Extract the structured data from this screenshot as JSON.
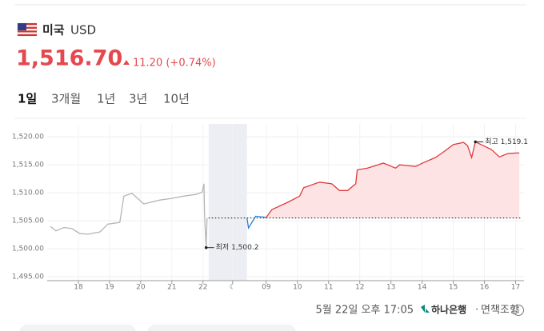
{
  "header": {
    "currency_name": "미국",
    "currency_code": "USD",
    "price": "1,516.70",
    "change": "11.20 (+0.74%)"
  },
  "tabs": [
    "1일",
    "3개월",
    "1년",
    "3년",
    "10년"
  ],
  "chart_data": {
    "type": "line",
    "xlim": [
      0,
      15.3
    ],
    "ylim": [
      1494.3,
      1522.3
    ],
    "xticks": [
      {
        "value": 1,
        "label": "18"
      },
      {
        "value": 2,
        "label": "19"
      },
      {
        "value": 3,
        "label": "20"
      },
      {
        "value": 4,
        "label": "21"
      },
      {
        "value": 5,
        "label": "22"
      },
      {
        "value": 5.95,
        "label": "☾"
      },
      {
        "value": 7.03,
        "label": "09"
      },
      {
        "value": 8.03,
        "label": "10"
      },
      {
        "value": 9.03,
        "label": "11"
      },
      {
        "value": 10.03,
        "label": "12"
      },
      {
        "value": 11.03,
        "label": "13"
      },
      {
        "value": 12.03,
        "label": "14"
      },
      {
        "value": 13.03,
        "label": "15"
      },
      {
        "value": 14.03,
        "label": "16"
      },
      {
        "value": 15.03,
        "label": "17"
      }
    ],
    "yticks": [
      {
        "value": 1495,
        "label": "1,495.00"
      },
      {
        "value": 1500,
        "label": "1,500.00"
      },
      {
        "value": 1505,
        "label": "1,505.00"
      },
      {
        "value": 1510,
        "label": "1,510.00"
      },
      {
        "value": 1515,
        "label": "1,515.00"
      },
      {
        "value": 1520,
        "label": "1,520.00"
      }
    ],
    "grid": true,
    "baseline": 1505.5,
    "night_band": [
      5.18,
      6.41
    ],
    "series": [
      {
        "color": "#b5b5b5",
        "x": [
          0.1,
          0.28,
          0.54,
          0.79,
          1.05,
          1.31,
          1.69,
          1.95,
          2.33,
          2.46,
          2.72,
          3.1,
          3.62,
          4.0,
          4.38,
          4.77,
          4.97,
          5.03,
          5.05,
          5.1,
          5.13
        ],
        "values": [
          1504.0,
          1503.2,
          1503.8,
          1503.6,
          1502.7,
          1502.6,
          1503.0,
          1504.4,
          1504.7,
          1509.4,
          1509.9,
          1508.0,
          1508.7,
          1509.0,
          1509.4,
          1509.7,
          1510.1,
          1511.6,
          1505.9,
          1500.2,
          1505.5
        ]
      },
      {
        "color": "#2b7cd3",
        "x": [
          6.41,
          6.46,
          6.69,
          7.03
        ],
        "values": [
          1505.5,
          1503.7,
          1505.8,
          1505.6
        ]
      },
      {
        "color": "#e03a3e",
        "fill": "#fde3e3",
        "x": [
          7.03,
          7.21,
          7.72,
          8.1,
          8.23,
          8.74,
          9.13,
          9.38,
          9.64,
          9.9,
          9.95,
          10.28,
          10.79,
          11.18,
          11.31,
          11.82,
          12.08,
          12.46,
          12.72,
          13.03,
          13.36,
          13.49,
          13.62,
          13.74,
          14.0,
          14.26,
          14.51,
          14.77,
          15.03,
          15.15
        ],
        "values": [
          1505.6,
          1507.0,
          1508.3,
          1509.4,
          1510.9,
          1511.9,
          1511.6,
          1510.4,
          1510.4,
          1511.6,
          1514.1,
          1514.4,
          1515.3,
          1514.4,
          1515.0,
          1514.7,
          1515.4,
          1516.3,
          1517.3,
          1518.6,
          1519.0,
          1518.4,
          1516.3,
          1519.1,
          1518.4,
          1517.7,
          1516.4,
          1517.0,
          1517.1,
          1517.1
        ]
      }
    ],
    "annotations": [
      {
        "text": "최고 1,519.1",
        "x": 13.74,
        "y": 1519.1
      },
      {
        "text": "최저 1,500.2",
        "x": 5.1,
        "y": 1500.2
      }
    ]
  },
  "footer": {
    "timestamp": "5월 22일 오후 17:05",
    "source": "하나은행",
    "disclaimer": "면책조항"
  }
}
